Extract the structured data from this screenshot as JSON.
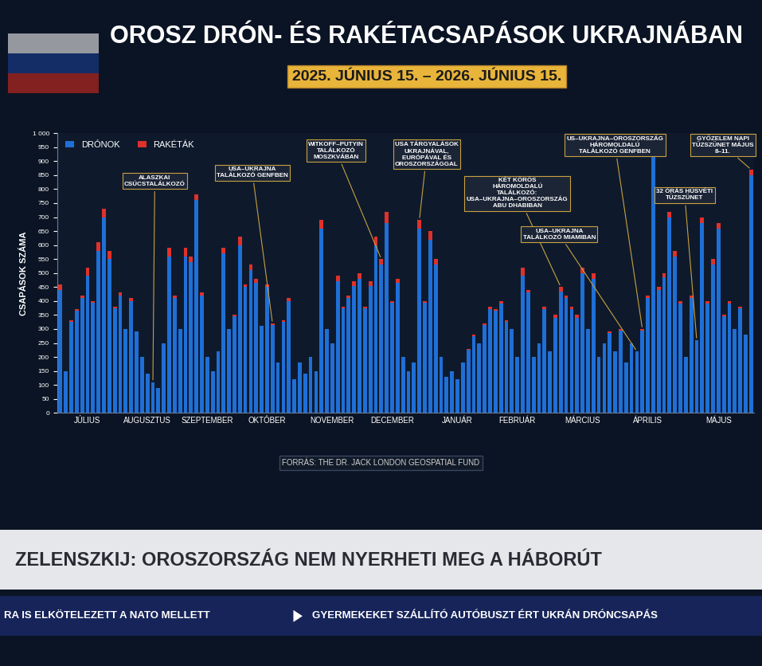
{
  "chart_data": {
    "type": "bar",
    "stacked": true,
    "title": "OROSZ DRÓN- ÉS RAKÉTACSAPÁSOK UKRAJNÁBAN",
    "subtitle": "2025. JÚNIUS 15. – 2026. JÚNIUS 15.",
    "y_label": "CSAPÁSOK SZÁMA",
    "source": "FORRÁS: THE DR. JACK LONDON GEOSPATIAL FUND",
    "categories": [
      null,
      null,
      null,
      null,
      null,
      "JÚLIUS",
      null,
      null,
      null,
      null,
      null,
      null,
      null,
      null,
      null,
      null,
      "AUGUSZTUS",
      null,
      null,
      null,
      null,
      null,
      null,
      null,
      null,
      null,
      null,
      "SZEPTEMBER",
      null,
      null,
      null,
      null,
      null,
      null,
      null,
      null,
      null,
      null,
      "OKTÓBER",
      null,
      null,
      null,
      null,
      null,
      null,
      null,
      null,
      null,
      null,
      null,
      "NOVEMBER",
      null,
      null,
      null,
      null,
      null,
      null,
      null,
      null,
      null,
      null,
      "DECEMBER",
      null,
      null,
      null,
      null,
      null,
      null,
      null,
      null,
      null,
      null,
      null,
      "JANUÁR",
      null,
      null,
      null,
      null,
      null,
      null,
      null,
      null,
      null,
      null,
      "FEBRUÁR",
      null,
      null,
      null,
      null,
      null,
      null,
      null,
      null,
      null,
      null,
      null,
      "MÁRCIUS",
      null,
      null,
      null,
      null,
      null,
      null,
      null,
      null,
      null,
      null,
      null,
      "ÁPRILIS",
      null,
      null,
      null,
      null,
      null,
      null,
      null,
      null,
      null,
      null,
      null,
      null,
      "MÁJUS",
      null,
      null,
      null,
      null,
      null,
      null
    ],
    "series": [
      {
        "name": "DRÓNOK",
        "color": "#1f6fd6",
        "values": [
          440,
          150,
          325,
          365,
          410,
          490,
          395,
          580,
          700,
          550,
          375,
          420,
          300,
          400,
          290,
          200,
          140,
          110,
          90,
          250,
          560,
          410,
          300,
          560,
          540,
          760,
          420,
          200,
          150,
          220,
          570,
          300,
          345,
          600,
          450,
          510,
          465,
          310,
          450,
          315,
          180,
          325,
          400,
          120,
          180,
          140,
          200,
          150,
          660,
          300,
          250,
          470,
          375,
          410,
          455,
          480,
          375,
          455,
          600,
          530,
          680,
          395,
          465,
          200,
          150,
          180,
          660,
          395,
          620,
          530,
          200,
          130,
          150,
          120,
          180,
          225,
          275,
          250,
          315,
          370,
          365,
          390,
          325,
          300,
          200,
          490,
          430,
          200,
          250,
          370,
          220,
          340,
          435,
          410,
          370,
          340,
          500,
          300,
          480,
          200,
          250,
          285,
          220,
          295,
          180,
          250,
          220,
          295,
          410,
          970,
          440,
          485,
          700,
          560,
          390,
          200,
          410,
          260,
          680,
          390,
          530,
          660,
          345,
          390,
          300,
          375,
          280,
          850
        ]
      },
      {
        "name": "RAKÉTÁK",
        "color": "#e0312b",
        "values": [
          20,
          0,
          5,
          5,
          10,
          30,
          5,
          30,
          30,
          30,
          5,
          10,
          0,
          10,
          0,
          0,
          0,
          0,
          0,
          0,
          30,
          10,
          0,
          30,
          20,
          20,
          10,
          0,
          0,
          0,
          20,
          0,
          5,
          30,
          10,
          20,
          15,
          0,
          10,
          5,
          0,
          5,
          10,
          0,
          0,
          0,
          0,
          0,
          30,
          0,
          0,
          20,
          5,
          10,
          15,
          20,
          5,
          15,
          30,
          20,
          40,
          5,
          15,
          0,
          0,
          0,
          30,
          5,
          30,
          20,
          0,
          0,
          0,
          0,
          0,
          5,
          5,
          0,
          5,
          10,
          5,
          10,
          5,
          0,
          0,
          30,
          10,
          0,
          0,
          10,
          0,
          10,
          15,
          10,
          10,
          10,
          20,
          0,
          20,
          0,
          0,
          5,
          0,
          5,
          0,
          0,
          0,
          5,
          10,
          20,
          10,
          15,
          20,
          20,
          10,
          0,
          10,
          0,
          20,
          10,
          20,
          20,
          5,
          10,
          0,
          5,
          0,
          20
        ]
      }
    ],
    "ylim": [
      0,
      1000
    ],
    "yticks": [
      0,
      50,
      100,
      150,
      200,
      250,
      300,
      350,
      400,
      450,
      500,
      550,
      600,
      650,
      700,
      750,
      800,
      850,
      900,
      950,
      {
        "value": 1000,
        "label": "1 000"
      }
    ],
    "grid": false,
    "legend": "upper left",
    "annotations": [
      {
        "text": "ALASZKAI CSÚCSTALÁLKOZÓ",
        "x": 17
      },
      {
        "text": "USA–UKRAJNA TALÁLKOZÓ GENFBEN",
        "x": 39
      },
      {
        "text": "WITKOFF–PUTYIN TALÁLKOZÓ MOSZKVÁBAN",
        "x": 59
      },
      {
        "text": "USA TÁRGYALÁSOK UKRAJNÁVAL, EURÓPÁVAL ÉS OROSZORSZÁGGAL",
        "x": 66
      },
      {
        "text": "KÉT KÖRÖS HÁROMOLDALÚ TALÁLKOZÓ: USA–UKRAJNA–OROSZORSZÁG ABU DHABIBAN",
        "x": 92
      },
      {
        "text": "US–UKRAJNA–OROSZORSZÁG HÁROMOLDALÚ TALÁLKOZÓ GENFBEN",
        "x": 107
      },
      {
        "text": "USA–UKRAJNA TALÁLKOZÓ MIAMIBAN",
        "x": 106
      },
      {
        "text": "32 ÓRÁS HÚSVÉTI TŰZSZÜNET",
        "x": 117
      },
      {
        "text": "GYŐZELEM NAPI TŰZSZÜNET MÁJUS 8–11.",
        "x": 127
      }
    ]
  },
  "screen": {
    "headline": "ZELENSZKIJ: OROSZORSZÁG NEM NYERHETI MEG A HÁBORÚT",
    "ticker": [
      "RA IS ELKÖTELEZETT A NATO MELLETT",
      "GYERMEKEKET SZÁLLÍTÓ AUTÓBUSZT ÉRT UKRÁN DRÓNCSAPÁS"
    ]
  }
}
